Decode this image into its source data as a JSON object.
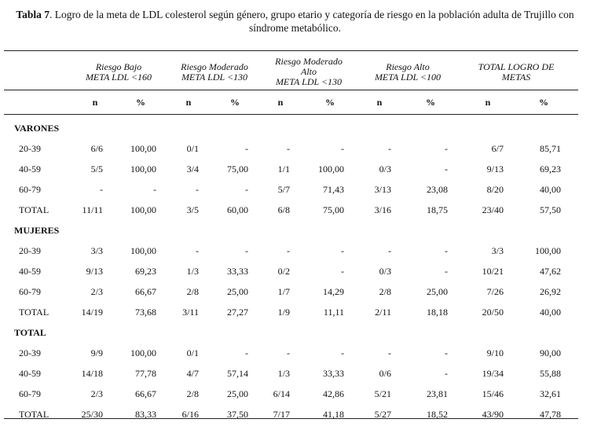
{
  "caption": {
    "label": "Tabla 7",
    "text": ". Logro de la meta de LDL colesterol según género, grupo etario y categoría de riesgo en la población adulta de Trujillo con",
    "text2": "síndrome metabólico."
  },
  "groups": [
    {
      "line1": "Riesgo Bajo",
      "line2": "META LDL <160",
      "line3": ""
    },
    {
      "line1": "Riesgo Moderado",
      "line2": "META LDL <130",
      "line3": ""
    },
    {
      "line1": "Riesgo Moderado",
      "line2": "Alto",
      "line3": "META LDL <130"
    },
    {
      "line1": "Riesgo Alto",
      "line2": "META LDL <100",
      "line3": ""
    },
    {
      "line1": "TOTAL LOGRO DE",
      "line2": "METAS",
      "line3": ""
    }
  ],
  "subheaders": [
    "n",
    "%",
    "n",
    "%",
    "n",
    "%",
    "n",
    "%",
    "n",
    "%"
  ],
  "sections": [
    {
      "title": "VARONES",
      "rows": [
        [
          "20-39",
          "6/6",
          "100,00",
          "0/1",
          "-",
          "-",
          "-",
          "-",
          "-",
          "6/7",
          "85,71"
        ],
        [
          "40-59",
          "5/5",
          "100,00",
          "3/4",
          "75,00",
          "1/1",
          "100,00",
          "0/3",
          "-",
          "9/13",
          "69,23"
        ],
        [
          "60-79",
          "-",
          "-",
          "-",
          "-",
          "5/7",
          "71,43",
          "3/13",
          "23,08",
          "8/20",
          "40,00"
        ],
        [
          "TOTAL",
          "11/11",
          "100,00",
          "3/5",
          "60,00",
          "6/8",
          "75,00",
          "3/16",
          "18,75",
          "23/40",
          "57,50"
        ]
      ]
    },
    {
      "title": "MUJERES",
      "rows": [
        [
          "20-39",
          "3/3",
          "100,00",
          "-",
          "-",
          "-",
          "-",
          "-",
          "-",
          "3/3",
          "100,00"
        ],
        [
          "40-59",
          "9/13",
          "69,23",
          "1/3",
          "33,33",
          "0/2",
          "-",
          "0/3",
          "-",
          "10/21",
          "47,62"
        ],
        [
          "60-79",
          "2/3",
          "66,67",
          "2/8",
          "25,00",
          "1/7",
          "14,29",
          "2/8",
          "25,00",
          "7/26",
          "26,92"
        ],
        [
          "TOTAL",
          "14/19",
          "73,68",
          "3/11",
          "27,27",
          "1/9",
          "11,11",
          "2/11",
          "18,18",
          "20/50",
          "40,00"
        ]
      ]
    },
    {
      "title": "TOTAL",
      "rows": [
        [
          "20-39",
          "9/9",
          "100,00",
          "0/1",
          "-",
          "-",
          "-",
          "-",
          "-",
          "9/10",
          "90,00"
        ],
        [
          "40-59",
          "14/18",
          "77,78",
          "4/7",
          "57,14",
          "1/3",
          "33,33",
          "0/6",
          "-",
          "19/34",
          "55,88"
        ],
        [
          "60-79",
          "2/3",
          "66,67",
          "2/8",
          "25,00",
          "6/14",
          "42,86",
          "5/21",
          "23,81",
          "15/46",
          "32,61"
        ],
        [
          "TOTAL",
          "25/30",
          "83,33",
          "6/16",
          "37,50",
          "7/17",
          "41,18",
          "5/27",
          "18,52",
          "43/90",
          "47,78"
        ]
      ]
    }
  ]
}
